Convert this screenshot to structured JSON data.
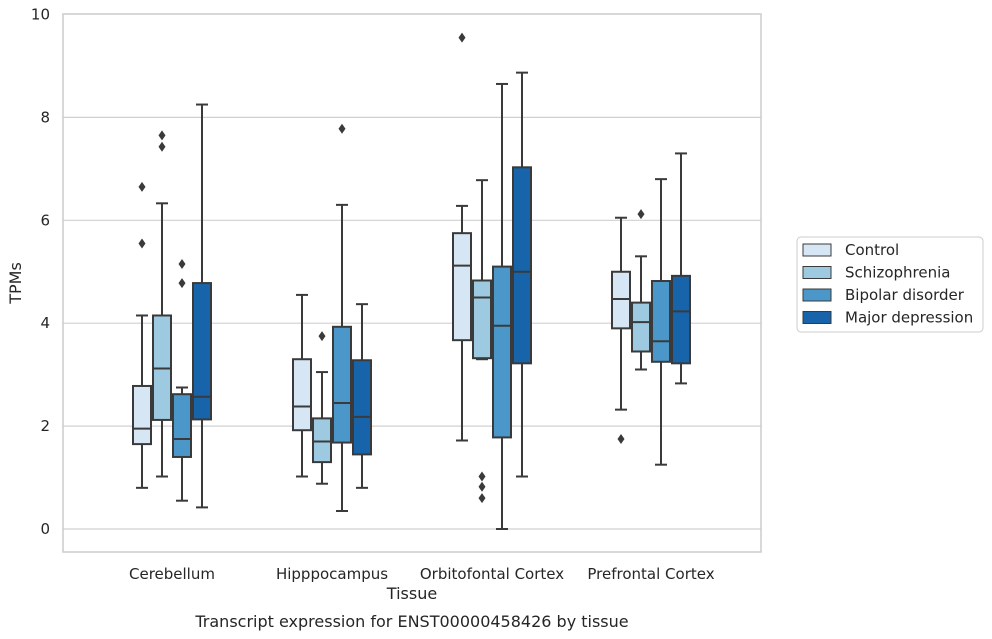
{
  "caption": "Transcript expression for ENST00000458426 by tissue",
  "chart_data": {
    "type": "box",
    "xlabel": "Tissue",
    "ylabel": "TPMs",
    "ylim": [
      -0.45,
      10
    ],
    "yticks": [
      0,
      2,
      4,
      6,
      8,
      10
    ],
    "grid": true,
    "legend_position": "right",
    "categories": [
      "Cerebellum",
      "Hipppocampus",
      "Orbitofontal Cortex",
      "Prefrontal Cortex"
    ],
    "series": [
      {
        "name": "Control",
        "color": "#d6e6f4",
        "boxes": [
          {
            "whislo": 0.8,
            "q1": 1.65,
            "median": 1.95,
            "q3": 2.78,
            "whishi": 4.15,
            "fliers": [
              5.55,
              6.65
            ]
          },
          {
            "whislo": 1.02,
            "q1": 1.92,
            "median": 2.38,
            "q3": 3.3,
            "whishi": 4.55,
            "fliers": []
          },
          {
            "whislo": 1.72,
            "q1": 3.67,
            "median": 5.12,
            "q3": 5.75,
            "whishi": 6.28,
            "fliers": [
              9.55
            ]
          },
          {
            "whislo": 2.32,
            "q1": 3.9,
            "median": 4.47,
            "q3": 5.0,
            "whishi": 6.05,
            "fliers": [
              1.75
            ]
          }
        ]
      },
      {
        "name": "Schizophrenia",
        "color": "#9ecae1",
        "boxes": [
          {
            "whislo": 1.02,
            "q1": 2.12,
            "median": 3.12,
            "q3": 4.15,
            "whishi": 6.33,
            "fliers": [
              7.43,
              7.65
            ]
          },
          {
            "whislo": 0.88,
            "q1": 1.3,
            "median": 1.7,
            "q3": 2.15,
            "whishi": 3.05,
            "fliers": [
              3.75
            ]
          },
          {
            "whislo": 3.3,
            "q1": 3.32,
            "median": 4.5,
            "q3": 4.83,
            "whishi": 6.78,
            "fliers": [
              0.6,
              0.82,
              1.02
            ]
          },
          {
            "whislo": 3.1,
            "q1": 3.45,
            "median": 4.02,
            "q3": 4.4,
            "whishi": 5.3,
            "fliers": [
              6.12
            ]
          }
        ]
      },
      {
        "name": "Bipolar disorder",
        "color": "#4b97c9",
        "boxes": [
          {
            "whislo": 0.55,
            "q1": 1.4,
            "median": 1.75,
            "q3": 2.62,
            "whishi": 2.75,
            "fliers": [
              4.78,
              5.15
            ]
          },
          {
            "whislo": 0.35,
            "q1": 1.68,
            "median": 2.45,
            "q3": 3.93,
            "whishi": 6.3,
            "fliers": [
              7.78
            ]
          },
          {
            "whislo": 0.0,
            "q1": 1.78,
            "median": 3.95,
            "q3": 5.1,
            "whishi": 8.65,
            "fliers": []
          },
          {
            "whislo": 1.25,
            "q1": 3.25,
            "median": 3.65,
            "q3": 4.82,
            "whishi": 6.8,
            "fliers": []
          }
        ]
      },
      {
        "name": "Major depression",
        "color": "#1764ab",
        "boxes": [
          {
            "whislo": 0.42,
            "q1": 2.13,
            "median": 2.57,
            "q3": 4.78,
            "whishi": 8.25,
            "fliers": []
          },
          {
            "whislo": 0.8,
            "q1": 1.45,
            "median": 2.18,
            "q3": 3.28,
            "whishi": 4.37,
            "fliers": []
          },
          {
            "whislo": 1.02,
            "q1": 3.22,
            "median": 5.0,
            "q3": 7.03,
            "whishi": 8.87,
            "fliers": []
          },
          {
            "whislo": 2.83,
            "q1": 3.22,
            "median": 4.23,
            "q3": 4.92,
            "whishi": 7.3,
            "fliers": []
          }
        ]
      }
    ]
  }
}
